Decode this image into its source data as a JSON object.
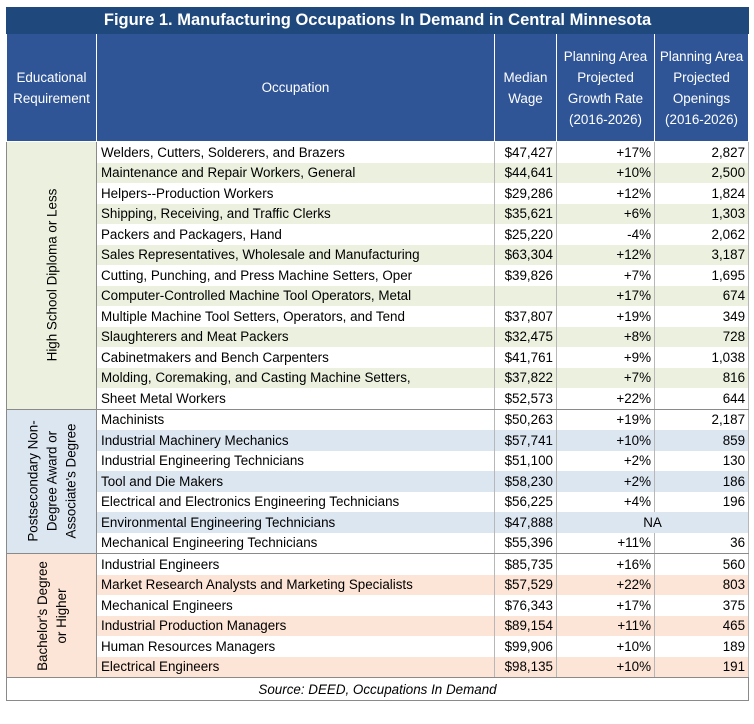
{
  "chart_data": {
    "type": "table",
    "title": "Figure 1. Manufacturing Occupations In Demand in Central Minnesota",
    "columns": [
      "Educational Requirement",
      "Occupation",
      "Median Wage",
      "Planning Area Projected Growth Rate (2016-2026)",
      "Planning Area Projected Openings (2016-2026)"
    ],
    "groups": [
      {
        "label_lines": [
          "High School Diploma or Less"
        ],
        "color": "#ebf1de",
        "rows": [
          {
            "occupation": "Welders, Cutters, Solderers, and Brazers",
            "wage": "$47,427",
            "growth": "+17%",
            "openings": "2,827"
          },
          {
            "occupation": "Maintenance and Repair Workers, General",
            "wage": "$44,641",
            "growth": "+10%",
            "openings": "2,500"
          },
          {
            "occupation": "Helpers--Production Workers",
            "wage": "$29,286",
            "growth": "+12%",
            "openings": "1,824"
          },
          {
            "occupation": "Shipping, Receiving, and Traffic Clerks",
            "wage": "$35,621",
            "growth": "+6%",
            "openings": "1,303"
          },
          {
            "occupation": "Packers and Packagers, Hand",
            "wage": "$25,220",
            "growth": "-4%",
            "openings": "2,062"
          },
          {
            "occupation": "Sales Representatives, Wholesale and Manufacturing",
            "wage": "$63,304",
            "growth": "+12%",
            "openings": "3,187"
          },
          {
            "occupation": "Cutting, Punching, and Press Machine Setters, Oper",
            "wage": "$39,826",
            "growth": "+7%",
            "openings": "1,695"
          },
          {
            "occupation": "Computer-Controlled Machine Tool Operators, Metal",
            "wage": "",
            "growth": "+17%",
            "openings": "674"
          },
          {
            "occupation": "Multiple Machine Tool Setters, Operators, and Tend",
            "wage": "$37,807",
            "growth": "+19%",
            "openings": "349"
          },
          {
            "occupation": "Slaughterers and Meat Packers",
            "wage": "$32,475",
            "growth": "+8%",
            "openings": "728"
          },
          {
            "occupation": "Cabinetmakers and Bench Carpenters",
            "wage": "$41,761",
            "growth": "+9%",
            "openings": "1,038"
          },
          {
            "occupation": "Molding, Coremaking, and Casting Machine Setters,",
            "wage": "$37,822",
            "growth": "+7%",
            "openings": "816"
          },
          {
            "occupation": "Sheet Metal Workers",
            "wage": "$52,573",
            "growth": "+22%",
            "openings": "644"
          }
        ]
      },
      {
        "label_lines": [
          "Postsecondary Non-",
          "Degree Award or",
          "Associate's Degree"
        ],
        "color": "#dce6f1",
        "rows": [
          {
            "occupation": "Machinists",
            "wage": "$50,263",
            "growth": "+19%",
            "openings": "2,187"
          },
          {
            "occupation": "Industrial Machinery Mechanics",
            "wage": "$57,741",
            "growth": "+10%",
            "openings": "859"
          },
          {
            "occupation": "Industrial Engineering Technicians",
            "wage": "$51,100",
            "growth": "+2%",
            "openings": "130"
          },
          {
            "occupation": "Tool and Die Makers",
            "wage": "$58,230",
            "growth": "+2%",
            "openings": "186"
          },
          {
            "occupation": "Electrical and Electronics Engineering Technicians",
            "wage": "$56,225",
            "growth": "+4%",
            "openings": "196"
          },
          {
            "occupation": "Environmental Engineering Technicians",
            "wage": "$47,888",
            "na": "NA"
          },
          {
            "occupation": "Mechanical Engineering Technicians",
            "wage": "$55,396",
            "growth": "+11%",
            "openings": "36"
          }
        ]
      },
      {
        "label_lines": [
          "Bachelor's Degree",
          "or Higher"
        ],
        "color": "#fce4d6",
        "rows": [
          {
            "occupation": "Industrial Engineers",
            "wage": "$85,735",
            "growth": "+16%",
            "openings": "560"
          },
          {
            "occupation": "Market Research Analysts and Marketing Specialists",
            "wage": "$57,529",
            "growth": "+22%",
            "openings": "803"
          },
          {
            "occupation": "Mechanical Engineers",
            "wage": "$76,343",
            "growth": "+17%",
            "openings": "375"
          },
          {
            "occupation": "Industrial Production Managers",
            "wage": "$89,154",
            "growth": "+11%",
            "openings": "465"
          },
          {
            "occupation": "Human Resources Managers",
            "wage": "$99,906",
            "growth": "+10%",
            "openings": "189"
          },
          {
            "occupation": "Electrical Engineers",
            "wage": "$98,135",
            "growth": "+10%",
            "openings": "191"
          }
        ]
      }
    ],
    "source": "Source: DEED, Occupations In Demand"
  }
}
